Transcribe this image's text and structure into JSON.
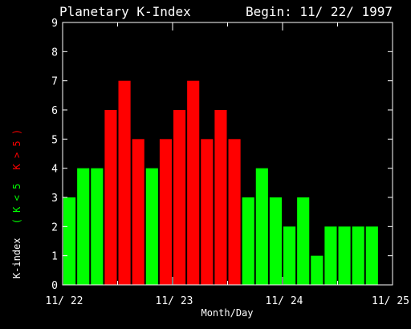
{
  "chart_data": {
    "type": "bar",
    "title": "Planetary K-Index",
    "subtitle": "Begin: 11/ 22/ 1997",
    "xlabel": "Month/Day",
    "ylabel_parts": [
      {
        "text": "K-index",
        "color": "#ffffff"
      },
      {
        "text": "( K < 5",
        "color": "#00ff00"
      },
      {
        "text": "K > 5 )",
        "color": "#ff0000"
      }
    ],
    "ylim": [
      0,
      9
    ],
    "yticks": [
      "0",
      "1",
      "2",
      "3",
      "4",
      "5",
      "6",
      "7",
      "8",
      "9"
    ],
    "x_tick_labels": [
      "11/ 22",
      "11/ 23",
      "11/ 24",
      "11/ 25"
    ],
    "bars_per_day": 8,
    "values": [
      3,
      4,
      4,
      6,
      7,
      5,
      4,
      5,
      6,
      7,
      5,
      6,
      5,
      3,
      4,
      3,
      2,
      3,
      1,
      2,
      2,
      2,
      2
    ],
    "threshold": 5,
    "colors": {
      "low": "#00ff00",
      "high": "#ff0000",
      "axis": "#ffffff",
      "background": "#000000"
    },
    "grid": false,
    "legend": "none"
  }
}
